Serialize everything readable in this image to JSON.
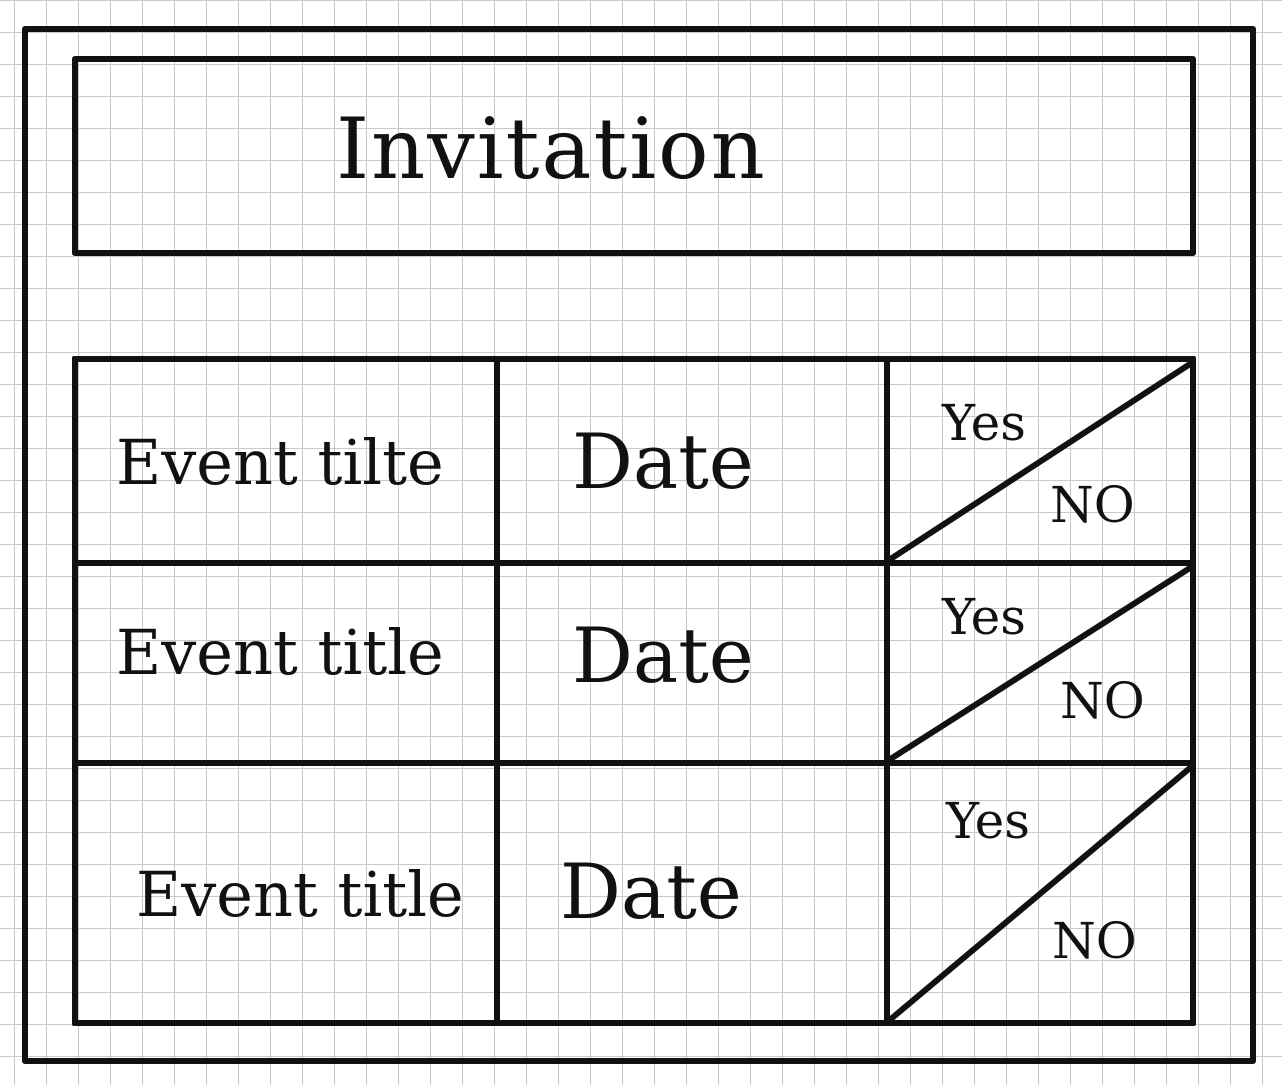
{
  "header": {
    "title": "Invitation"
  },
  "events": [
    {
      "title": "Event tilte",
      "date": "Date",
      "yes_label": "Yes",
      "no_label": "NO"
    },
    {
      "title": "Event title",
      "date": "Date",
      "yes_label": "Yes",
      "no_label": "NO"
    },
    {
      "title": "Event title",
      "date": "Date",
      "yes_label": "Yes",
      "no_label": "NO"
    }
  ]
}
